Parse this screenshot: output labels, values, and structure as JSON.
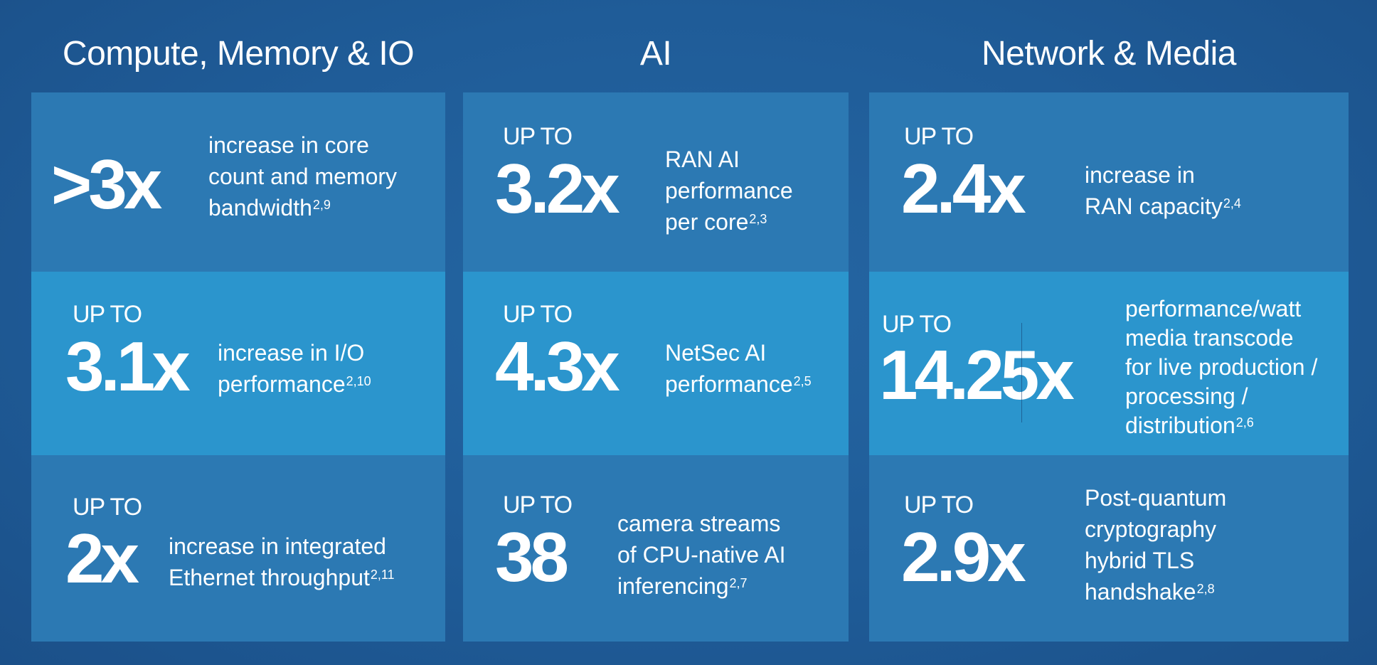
{
  "columns": [
    {
      "heading": "Compute, Memory & IO",
      "tiles": [
        {
          "upto": "",
          "value": ">3x",
          "lines": [
            "increase in core",
            "count and memory",
            "bandwidth"
          ],
          "sup": "2,9"
        },
        {
          "upto": "UP TO",
          "value": "3.1x",
          "lines": [
            "increase in I/O",
            "performance"
          ],
          "sup": "2,10"
        },
        {
          "upto": "UP TO",
          "value": "2x",
          "lines": [
            "increase in integrated",
            "Ethernet throughput"
          ],
          "sup": "2,11"
        }
      ]
    },
    {
      "heading": "AI",
      "tiles": [
        {
          "upto": "UP TO",
          "value": "3.2x",
          "lines": [
            "RAN AI",
            "performance",
            "per core"
          ],
          "sup": "2,3"
        },
        {
          "upto": "UP TO",
          "value": "4.3x",
          "lines": [
            "NetSec AI",
            "performance"
          ],
          "sup": "2,5"
        },
        {
          "upto": "UP TO",
          "value": "38",
          "lines": [
            "camera streams",
            "of CPU-native AI",
            "inferencing"
          ],
          "sup": "2,7"
        }
      ]
    },
    {
      "heading": "Network & Media",
      "tiles": [
        {
          "upto": "UP TO",
          "value": "2.4x",
          "lines": [
            "increase in",
            "RAN capacity"
          ],
          "sup": "2,4"
        },
        {
          "upto": "UP TO",
          "value": "14.25x",
          "lines": [
            "performance/watt",
            "media transcode",
            "for live production /",
            "processing /",
            "distribution"
          ],
          "sup": "2,6"
        },
        {
          "upto": "UP TO",
          "value": "2.9x",
          "lines": [
            "Post-quantum",
            "cryptography",
            "hybrid TLS",
            "handshake"
          ],
          "sup": "2,8"
        }
      ]
    }
  ]
}
